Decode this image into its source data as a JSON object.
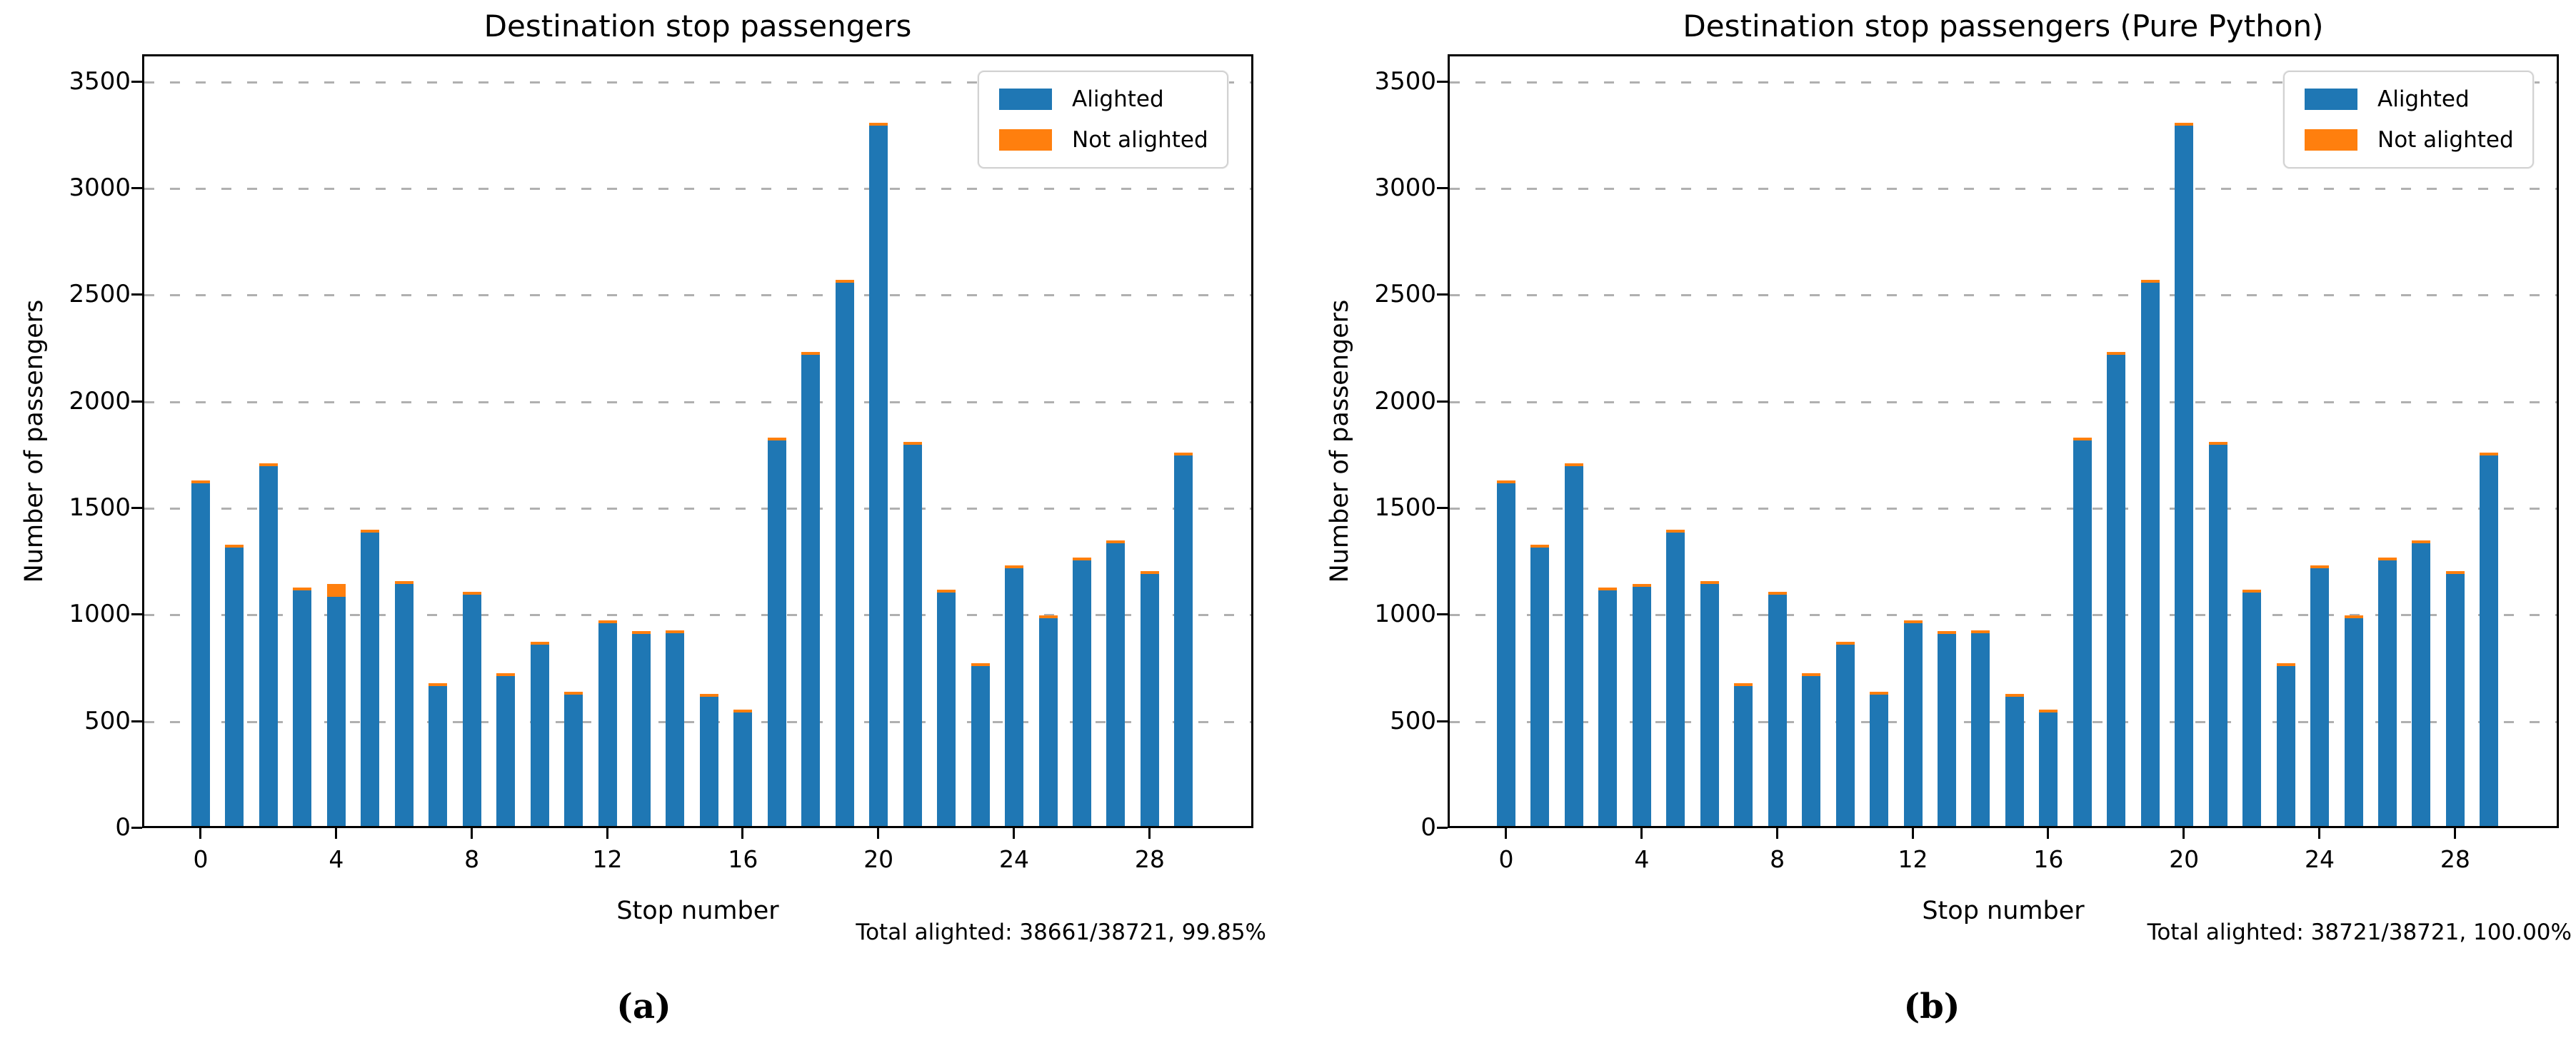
{
  "colors": {
    "alighted": "#1f77b4",
    "not_alighted": "#ff7f0e",
    "grid": "#b0b0b0",
    "axis": "#000000",
    "legend_border": "#d2d2d2"
  },
  "charts": [
    {
      "title": "Destination stop passengers",
      "ylabel": "Number of passengers",
      "xlabel": "Stop number",
      "total_note": "Total alighted: 38661/38721, 99.85%",
      "panel_label": "(a)",
      "legend": [
        {
          "label": "Alighted",
          "color": "#1f77b4"
        },
        {
          "label": "Not alighted",
          "color": "#ff7f0e"
        }
      ]
    },
    {
      "title": "Destination stop passengers (Pure Python)",
      "ylabel": "Number of passengers",
      "xlabel": "Stop number",
      "total_note": "Total alighted: 38721/38721, 100.00%",
      "panel_label": "(b)",
      "legend": [
        {
          "label": "Alighted",
          "color": "#1f77b4"
        },
        {
          "label": "Not alighted",
          "color": "#ff7f0e"
        }
      ]
    }
  ],
  "chart_data": [
    {
      "type": "bar",
      "stacked": true,
      "title": "Destination stop passengers",
      "xlabel": "Stop number",
      "ylabel": "Number of passengers",
      "categories": [
        0,
        1,
        2,
        3,
        4,
        5,
        6,
        7,
        8,
        9,
        10,
        11,
        12,
        13,
        14,
        15,
        16,
        17,
        18,
        19,
        20,
        21,
        22,
        23,
        24,
        25,
        26,
        27,
        28,
        29
      ],
      "series": [
        {
          "name": "Alighted",
          "values": [
            1620,
            1320,
            1700,
            1120,
            1075,
            1390,
            1150,
            670,
            1100,
            718,
            865,
            630,
            966,
            914,
            918,
            620,
            547,
            1821,
            2224,
            2561,
            3300,
            1801,
            1107,
            764,
            1223,
            989,
            1258,
            1340,
            1197,
            1753
          ]
        },
        {
          "name": "Not alighted",
          "values": [
            0,
            0,
            0,
            0,
            60,
            0,
            0,
            0,
            0,
            0,
            0,
            0,
            0,
            0,
            0,
            0,
            0,
            0,
            0,
            0,
            0,
            0,
            0,
            0,
            0,
            0,
            0,
            0,
            0,
            0
          ]
        }
      ],
      "yticks": [
        0,
        500,
        1000,
        1500,
        2000,
        2500,
        3000,
        3500
      ],
      "xticks": [
        0,
        4,
        8,
        12,
        16,
        20,
        24,
        28
      ],
      "ylim": [
        0,
        3630
      ],
      "grid": "horizontal-dashed",
      "legend_position": "upper-right",
      "annotation": "Total alighted: 38661/38721, 99.85%"
    },
    {
      "type": "bar",
      "stacked": true,
      "title": "Destination stop passengers (Pure Python)",
      "xlabel": "Stop number",
      "ylabel": "Number of passengers",
      "categories": [
        0,
        1,
        2,
        3,
        4,
        5,
        6,
        7,
        8,
        9,
        10,
        11,
        12,
        13,
        14,
        15,
        16,
        17,
        18,
        19,
        20,
        21,
        22,
        23,
        24,
        25,
        26,
        27,
        28,
        29
      ],
      "series": [
        {
          "name": "Alighted",
          "values": [
            1620,
            1320,
            1700,
            1120,
            1135,
            1390,
            1150,
            670,
            1100,
            718,
            865,
            630,
            966,
            914,
            918,
            620,
            547,
            1821,
            2224,
            2561,
            3300,
            1801,
            1107,
            764,
            1223,
            989,
            1258,
            1340,
            1197,
            1753
          ]
        },
        {
          "name": "Not alighted",
          "values": [
            0,
            0,
            0,
            0,
            0,
            0,
            0,
            0,
            0,
            0,
            0,
            0,
            0,
            0,
            0,
            0,
            0,
            0,
            0,
            0,
            0,
            0,
            0,
            0,
            0,
            0,
            0,
            0,
            0,
            0
          ]
        }
      ],
      "yticks": [
        0,
        500,
        1000,
        1500,
        2000,
        2500,
        3000,
        3500
      ],
      "xticks": [
        0,
        4,
        8,
        12,
        16,
        20,
        24,
        28
      ],
      "ylim": [
        0,
        3630
      ],
      "grid": "horizontal-dashed",
      "legend_position": "upper-right",
      "annotation": "Total alighted: 38721/38721, 100.00%"
    }
  ]
}
